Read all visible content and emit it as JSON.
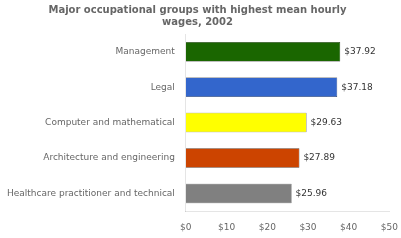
{
  "chart_data": {
    "type": "bar",
    "orientation": "horizontal",
    "title": "Major occupational groups with highest mean hourly\nwages, 2002",
    "categories": [
      "Healthcare practitioner and technical",
      "Architecture and engineering",
      "Computer and mathematical",
      "Legal",
      "Management"
    ],
    "values": [
      25.96,
      27.89,
      29.63,
      37.18,
      37.92
    ],
    "value_labels": [
      "$25.96",
      "$27.89",
      "$29.63",
      "$37.18",
      "$37.92"
    ],
    "data_labels": true,
    "colors": [
      "#808080",
      "#CC4400",
      "#FFFF00",
      "#3366CC",
      "#1A6600"
    ],
    "xlim": [
      0,
      50
    ],
    "xticks": [
      {
        "value": 0,
        "label": "$0"
      },
      {
        "value": 10,
        "label": "$10"
      },
      {
        "value": 20,
        "label": "$20"
      },
      {
        "value": 30,
        "label": "$30"
      },
      {
        "value": 40,
        "label": "$40"
      },
      {
        "value": 50,
        "label": "$50"
      }
    ],
    "grid": false
  }
}
